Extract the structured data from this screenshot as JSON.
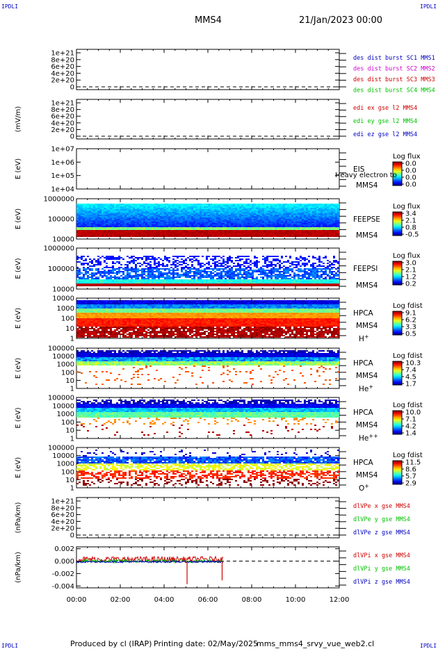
{
  "corners": {
    "tl": "IPDLI",
    "tr": "IPDLI",
    "bl": "IPDLI",
    "br": "IPDLI"
  },
  "header": {
    "spacecraft": "MMS4",
    "date": "21/Jan/2023 00:00"
  },
  "footer": {
    "produced": "Produced by cl (IRAP)",
    "printing": "Printing date: 02/May/2025",
    "script": "mms_mms4_srvy_vue_web2.cl"
  },
  "colors": {
    "blue": "#0000c0",
    "magenta": "#d000d0",
    "red": "#d00000",
    "green": "#00c000"
  },
  "chart_data": {
    "type": "multi-panel",
    "x_ticks": [
      "00:00",
      "02:00",
      "04:00",
      "06:00",
      "08:00",
      "10:00",
      "12:00"
    ],
    "x_range_hours": [
      0,
      12
    ],
    "panels": [
      {
        "kind": "line",
        "ylabel": "",
        "ticks": [
          "1e+21",
          "8e+20",
          "6e+20",
          "4e+20",
          "2e+20",
          "0"
        ],
        "legend": [
          {
            "text": "des dist burst SC1 MMS1",
            "color": "blue"
          },
          {
            "text": "des dist burst SC2 MMS2",
            "color": "magenta"
          },
          {
            "text": "des dist burst SC3 MMS3",
            "color": "red"
          },
          {
            "text": "des dist burst SC4 MMS4",
            "color": "green"
          }
        ]
      },
      {
        "kind": "line",
        "ylabel": "(mV/m)",
        "ticks": [
          "1e+21",
          "8e+20",
          "6e+20",
          "4e+20",
          "2e+20",
          "0"
        ],
        "legend": [
          {
            "text": "edi ex gse l2 MMS4",
            "color": "red"
          },
          {
            "text": "edi ey gse l2 MMS4",
            "color": "green"
          },
          {
            "text": "edi ez gse l2 MMS4",
            "color": "blue"
          }
        ]
      },
      {
        "kind": "spec",
        "ylabel": "E (eV)",
        "ticks": [
          "1e+07",
          "1e+06",
          "1e+05",
          "1e+04"
        ],
        "inst": "EIS",
        "overlay": "Heavy electron to",
        "sc": "MMS4",
        "cb_title": "Log flux",
        "cb_vals": [
          "0.0",
          "0.0",
          "0.0",
          "0.0"
        ],
        "data_present": false
      },
      {
        "kind": "spec",
        "ylabel": "E (eV)",
        "ticks": [
          "1000000",
          "100000",
          "10000"
        ],
        "inst": "FEEPSE",
        "sc": "MMS4",
        "cb_title": "Log flux",
        "cb_vals": [
          "3.4",
          "2.1",
          "0.8",
          "-0.5"
        ],
        "style": "feepse"
      },
      {
        "kind": "spec",
        "ylabel": "E (eV)",
        "ticks": [
          "1000000",
          "100000",
          "10000"
        ],
        "inst": "FEEPSI",
        "sc": "MMS4",
        "cb_title": "Log flux",
        "cb_vals": [
          "3.0",
          "2.1",
          "1.2",
          "0.2"
        ],
        "style": "feepsi"
      },
      {
        "kind": "spec",
        "ylabel": "E (eV)",
        "ticks": [
          "10000",
          "1000",
          "100",
          "10",
          "1"
        ],
        "inst": "HPCA",
        "sc": "MMS4",
        "species": "H",
        "sup": "+",
        "cb_title": "Log fdist",
        "cb_vals": [
          "9.1",
          "6.2",
          "3.3",
          "0.5"
        ],
        "style": "hplus"
      },
      {
        "kind": "spec",
        "ylabel": "E (eV)",
        "ticks": [
          "100000",
          "10000",
          "1000",
          "100",
          "10",
          "1"
        ],
        "inst": "HPCA",
        "sc": "MMS4",
        "species": "He",
        "sup": "+",
        "cb_title": "Log fdist",
        "cb_vals": [
          "10.3",
          "7.4",
          "4.5",
          "1.7"
        ],
        "style": "heplus"
      },
      {
        "kind": "spec",
        "ylabel": "E (eV)",
        "ticks": [
          "100000",
          "10000",
          "1000",
          "100",
          "10",
          "1"
        ],
        "inst": "HPCA",
        "sc": "MMS4",
        "species": "He",
        "sup": "++",
        "cb_title": "Log fdist",
        "cb_vals": [
          "10.0",
          "7.1",
          "4.2",
          "1.4"
        ],
        "style": "hepp"
      },
      {
        "kind": "spec",
        "ylabel": "E (eV)",
        "ticks": [
          "100000",
          "10000",
          "1000",
          "100",
          "10",
          "1"
        ],
        "inst": "HPCA",
        "sc": "MMS4",
        "species": "O",
        "sup": "+",
        "cb_title": "Log fdist",
        "cb_vals": [
          "11.5",
          "8.6",
          "5.7",
          "2.9"
        ],
        "style": "oplus"
      },
      {
        "kind": "line",
        "ylabel": "(nPa/km)",
        "ticks": [
          "1e+21",
          "8e+20",
          "6e+20",
          "4e+20",
          "2e+20",
          "0"
        ],
        "legend": [
          {
            "text": "dlVPe x gse MMS4",
            "color": "red"
          },
          {
            "text": "dlVPe y gse MMS4",
            "color": "green"
          },
          {
            "text": "dlVPe z gse MMS4",
            "color": "blue"
          }
        ]
      },
      {
        "kind": "line",
        "ylabel": "(nPa/km)",
        "ticks": [
          "0.002",
          "0.000",
          "-0.002",
          "-0.004"
        ],
        "yrange": [
          -0.0043,
          0.0023
        ],
        "legend": [
          {
            "text": "dlVPi x gse MMS4",
            "color": "red"
          },
          {
            "text": "dlVPi y gse MMS4",
            "color": "green"
          },
          {
            "text": "dlVPi z gse MMS4",
            "color": "blue"
          }
        ],
        "data_end_hours": 6.7,
        "spikes": [
          {
            "t": 5.05,
            "v": -0.0037
          },
          {
            "t": 6.65,
            "v": -0.0031
          }
        ]
      }
    ]
  }
}
